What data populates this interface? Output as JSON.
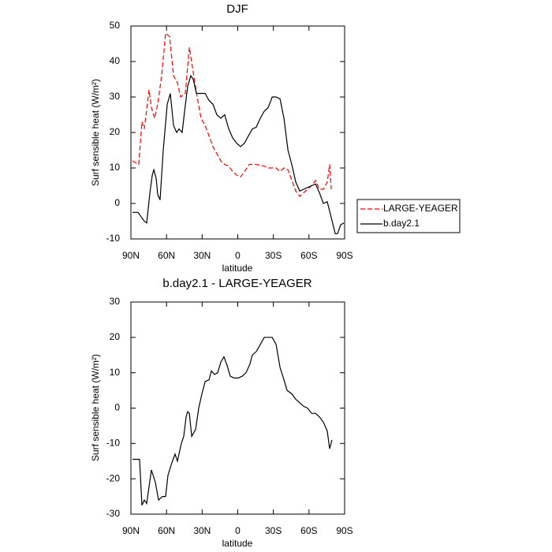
{
  "chart_data": [
    {
      "type": "line",
      "title": "DJF",
      "xlabel": "latitude",
      "ylabel": "Surf sensible heat (W/m²)",
      "xlim": [
        90,
        -90
      ],
      "xticks": [
        {
          "value": 90,
          "label": "90N"
        },
        {
          "value": 60,
          "label": "60N"
        },
        {
          "value": 30,
          "label": "30N"
        },
        0,
        {
          "value": -30,
          "label": "30S"
        },
        {
          "value": -60,
          "label": "60S"
        },
        {
          "value": -90,
          "label": "90S"
        }
      ],
      "ylim": [
        -10,
        50
      ],
      "yticks": [
        -10,
        0,
        10,
        20,
        30,
        40,
        50
      ],
      "legend": "right",
      "series": [
        {
          "name": "LARGE-YEAGER",
          "color": "#ff0000",
          "linestyle": "dashed",
          "x": [
            88.7,
            83.4,
            80.7,
            78.7,
            74.7,
            72.7,
            70,
            67.4,
            64.1,
            60.8,
            57.4,
            54.1,
            50.8,
            48.1,
            44.2,
            40.8,
            37.5,
            34.2,
            30.9,
            27.5,
            24.2,
            20.9,
            17.6,
            14.3,
            11,
            7.6,
            4.3,
            1,
            -2.4,
            -5.7,
            -9.7,
            -15.6,
            -22.3,
            -25.6,
            -32.3,
            -35.6,
            -38.9,
            -42.3,
            -45.5,
            -48.9,
            -52.2,
            -55.5,
            -58.8,
            -62.2,
            -65.5,
            -68.8,
            -72.1,
            -75.4,
            -77.4,
            -78.8
          ],
          "values": [
            12,
            11,
            23,
            21,
            32,
            27,
            24,
            28,
            36,
            48,
            47,
            36,
            34,
            30,
            31,
            44,
            37,
            30,
            24,
            22,
            19,
            16,
            14,
            12,
            11,
            10.5,
            9,
            8,
            7.5,
            9,
            11,
            11,
            10.5,
            10,
            10,
            9,
            10,
            9.5,
            6.5,
            3.5,
            2,
            3,
            4,
            5,
            6.5,
            4,
            4,
            6,
            11,
            4
          ]
        },
        {
          "name": "b.day2.1",
          "color": "#000000",
          "linestyle": "solid",
          "x": [
            88.7,
            84,
            78.7,
            76.7,
            74,
            72,
            70.7,
            68.7,
            67.4,
            65.4,
            62.8,
            59.4,
            56.8,
            54.1,
            51.5,
            49.5,
            46.8,
            44.8,
            42.2,
            39.5,
            37.5,
            34.8,
            30.9,
            27.5,
            24.2,
            20.9,
            17.6,
            14.3,
            11,
            7.6,
            4.3,
            1,
            -2.4,
            -5.7,
            -9.7,
            -12.3,
            -15.6,
            -19,
            -22.3,
            -25.6,
            -29,
            -32.3,
            -35.6,
            -38.9,
            -42.3,
            -45.5,
            -48.9,
            -52.2,
            -55.5,
            -58.8,
            -62.2,
            -65.5,
            -68.8,
            -72.1,
            -75.4,
            -78.8,
            -82.1,
            -84,
            -86.7,
            -89.4
          ],
          "values": [
            -2.5,
            -2.5,
            -5,
            -5.5,
            3,
            8,
            9.5,
            7,
            2.5,
            1,
            15,
            28,
            31,
            22,
            20,
            21,
            20,
            26,
            33,
            36,
            35,
            31,
            31,
            31,
            29,
            28,
            25,
            24,
            25,
            21,
            18.5,
            17,
            16,
            17,
            19.5,
            21,
            21.5,
            24,
            26,
            27,
            30,
            30,
            29.5,
            24,
            15,
            11,
            6,
            3.5,
            4,
            4.5,
            5,
            5.5,
            3,
            0,
            0.5,
            -4,
            -8.5,
            -8.5,
            -6,
            -5.5
          ]
        }
      ]
    },
    {
      "type": "line",
      "title": "b.day2.1 - LARGE-YEAGER",
      "xlabel": "latitude",
      "ylabel": "Surf sensible heat (W/m²)",
      "xlim": [
        90,
        -90
      ],
      "xticks": [
        {
          "value": 90,
          "label": "90N"
        },
        {
          "value": 60,
          "label": "60N"
        },
        {
          "value": 30,
          "label": "30N"
        },
        0,
        {
          "value": -30,
          "label": "30S"
        },
        {
          "value": -60,
          "label": "60S"
        },
        {
          "value": -90,
          "label": "90S"
        }
      ],
      "ylim": [
        -30,
        30
      ],
      "yticks": [
        -30,
        -20,
        -10,
        0,
        10,
        20,
        30
      ],
      "series": [
        {
          "color": "#000000",
          "linestyle": "solid",
          "x": [
            88.7,
            85.3,
            82.7,
            80.7,
            78.7,
            76.7,
            72.7,
            69.4,
            66.7,
            63.4,
            60.8,
            58.8,
            55.5,
            52.8,
            50.8,
            47.5,
            45.5,
            43.5,
            42.2,
            40.8,
            38.8,
            35.5,
            32.9,
            30.2,
            27.5,
            24.2,
            22.2,
            19.6,
            16.9,
            14.3,
            11.6,
            8.9,
            6.3,
            3,
            -0.4,
            -3.7,
            -7,
            -10.3,
            -12.3,
            -15.6,
            -19,
            -22.3,
            -25.6,
            -29,
            -32.3,
            -35.6,
            -38.9,
            -41.6,
            -45.6,
            -48.9,
            -52.2,
            -55.5,
            -58.8,
            -62.2,
            -65.5,
            -68.8,
            -72.1,
            -75.4,
            -77.4,
            -79.4
          ],
          "values": [
            -14.5,
            -14.5,
            -14.5,
            -27.5,
            -26,
            -27,
            -17.5,
            -21,
            -26,
            -25,
            -25,
            -19,
            -15.5,
            -13,
            -15,
            -10,
            -8,
            -2.5,
            -1,
            -1.5,
            -8,
            -6,
            0,
            4,
            7.5,
            8,
            10.5,
            9.5,
            10,
            13,
            14.5,
            12,
            9,
            8.5,
            8.5,
            9,
            10,
            12.5,
            15,
            16,
            18,
            20,
            20,
            20,
            18,
            11.5,
            8,
            5,
            4,
            2.5,
            1.5,
            0.5,
            0,
            -1.5,
            -1.5,
            -2.5,
            -4,
            -6.5,
            -11.5,
            -9
          ]
        }
      ]
    }
  ]
}
